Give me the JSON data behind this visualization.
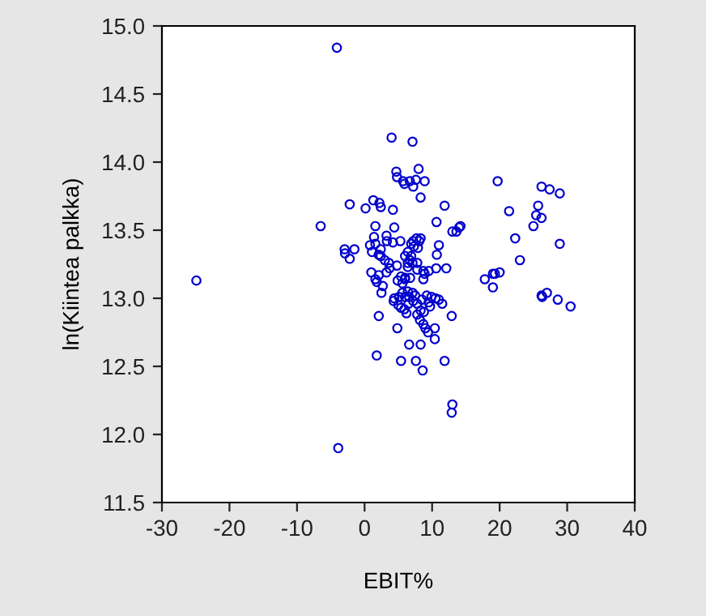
{
  "chart_data": {
    "type": "scatter",
    "xlabel": "EBIT%",
    "ylabel": "ln(Kiintea palkka)",
    "xlim": [
      -30,
      40
    ],
    "ylim": [
      11.5,
      15.0
    ],
    "xticks": [
      -30,
      -20,
      -10,
      0,
      10,
      20,
      30,
      40
    ],
    "yticks": [
      {
        "value": 11.5,
        "label": "11.5"
      },
      {
        "value": 12.0,
        "label": "12.0"
      },
      {
        "value": 12.5,
        "label": "12.5"
      },
      {
        "value": 13.0,
        "label": "13.0"
      },
      {
        "value": 13.5,
        "label": "13.5"
      },
      {
        "value": 14.0,
        "label": "14.0"
      },
      {
        "value": 14.5,
        "label": "14.5"
      },
      {
        "value": 15.0,
        "label": "15.0"
      }
    ],
    "grid": false,
    "marker": "circle",
    "series": [
      {
        "color": "#0000cc",
        "x": [
          -4.1,
          4.0,
          7.1,
          4.7,
          4.8,
          8.0,
          5.7,
          6.7,
          7.6,
          8.9,
          5.9,
          7.2,
          8.3,
          19.7,
          26.2,
          27.4,
          28.9,
          21.4,
          25.7,
          25.4,
          26.2,
          25.0,
          22.3,
          23.0,
          28.9,
          17.8,
          19.0,
          19.3,
          20.0,
          19.0,
          26.2,
          26.3,
          27.0,
          28.6,
          30.5,
          -24.9,
          -6.5,
          -2.2,
          -2.95,
          -2.9,
          -2.2,
          -1.5,
          -3.9,
          0.15,
          1.3,
          2.2,
          2.4,
          4.2,
          11.85,
          1.6,
          4.4,
          10.65,
          13.0,
          13.6,
          14.0,
          14.2,
          1.4,
          3.25,
          3.3,
          5.3,
          4.2,
          0.8,
          1.6,
          2.4,
          1.1,
          2.1,
          2.4,
          3.0,
          3.6,
          4.8,
          3.7,
          3.25,
          1.0,
          1.6,
          2.1,
          2.7,
          2.5,
          1.8,
          7.2,
          7.7,
          8.1,
          8.3,
          6.9,
          7.3,
          7.9,
          6.4,
          6.0,
          6.9,
          6.7,
          6.4,
          7.1,
          6.4,
          7.8,
          10.7,
          11.0,
          12.1,
          10.6,
          7.8,
          8.7,
          8.9,
          9.5,
          8.7,
          5.4,
          6.0,
          6.75,
          4.9,
          5.6,
          6.0,
          4.4,
          4.3,
          5.1,
          5.6,
          6.4,
          7.1,
          6.0,
          6.6,
          5.0,
          5.4,
          5.9,
          6.5,
          6.2,
          7.2,
          7.8,
          7.5,
          8.5,
          9.2,
          9.9,
          10.5,
          11.0,
          11.5,
          9.7,
          8.3,
          8.8,
          7.8,
          9.5,
          4.85,
          2.1,
          8.2,
          8.7,
          9.0,
          9.4,
          10.4,
          10.4,
          12.9,
          6.6,
          8.3,
          1.8,
          5.4,
          7.6,
          11.85,
          8.6,
          13.0,
          12.9
        ],
        "values": [
          14.84,
          14.18,
          14.15,
          13.93,
          13.89,
          13.95,
          13.86,
          13.86,
          13.87,
          13.86,
          13.84,
          13.82,
          13.74,
          13.86,
          13.82,
          13.8,
          13.77,
          13.64,
          13.68,
          13.61,
          13.59,
          13.53,
          13.44,
          13.28,
          13.4,
          13.14,
          13.18,
          13.18,
          13.19,
          13.08,
          13.02,
          13.01,
          13.04,
          12.99,
          12.94,
          13.13,
          13.53,
          13.69,
          13.36,
          13.33,
          13.29,
          13.36,
          11.9,
          13.66,
          13.72,
          13.7,
          13.67,
          13.65,
          13.68,
          13.53,
          13.52,
          13.56,
          13.49,
          13.49,
          13.52,
          13.53,
          13.45,
          13.46,
          13.42,
          13.42,
          13.41,
          13.39,
          13.4,
          13.36,
          13.34,
          13.32,
          13.31,
          13.28,
          13.26,
          13.24,
          13.22,
          13.19,
          13.19,
          13.14,
          13.17,
          13.09,
          13.04,
          13.12,
          13.42,
          13.44,
          13.42,
          13.44,
          13.4,
          13.38,
          13.37,
          13.34,
          13.31,
          13.31,
          13.28,
          13.26,
          13.26,
          13.23,
          13.26,
          13.32,
          13.39,
          13.22,
          13.22,
          13.21,
          13.2,
          13.18,
          13.2,
          13.14,
          13.16,
          13.15,
          13.15,
          13.13,
          13.11,
          13.14,
          13.0,
          12.98,
          13.01,
          13.04,
          13.05,
          13.04,
          13.01,
          13.01,
          12.95,
          12.93,
          12.92,
          12.96,
          12.89,
          12.98,
          12.96,
          13.02,
          12.99,
          13.02,
          13.01,
          13.0,
          12.99,
          12.96,
          12.94,
          12.91,
          12.9,
          12.88,
          12.97,
          12.78,
          12.87,
          12.84,
          12.81,
          12.78,
          12.75,
          12.78,
          12.7,
          12.87,
          12.66,
          12.66,
          12.58,
          12.54,
          12.54,
          12.54,
          12.47,
          12.22,
          12.16
        ]
      }
    ]
  }
}
